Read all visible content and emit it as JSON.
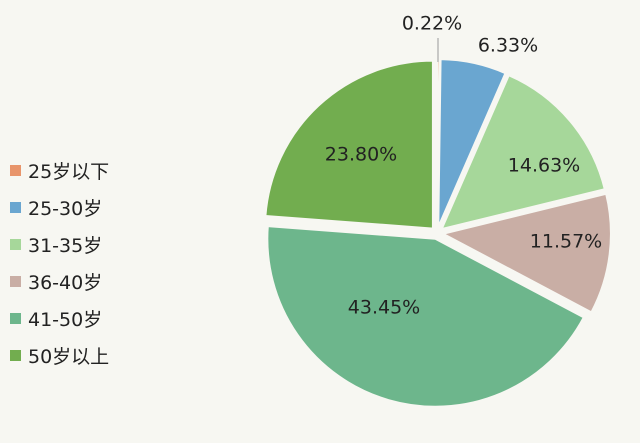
{
  "chart_data": {
    "type": "pie",
    "title": "",
    "categories": [
      "25岁以下",
      "25-30岁",
      "31-35岁",
      "36-40岁",
      "41-50岁",
      "50岁以上"
    ],
    "values": [
      0.22,
      6.33,
      14.63,
      11.57,
      43.45,
      23.8
    ],
    "data_labels": [
      "0.22%",
      "6.33%",
      "14.63%",
      "11.57%",
      "43.45%",
      "23.80%"
    ],
    "colors": [
      "#e8956b",
      "#6aa6d0",
      "#a6d79a",
      "#c9aea5",
      "#6db68c",
      "#72ad4f"
    ],
    "legend_position": "left",
    "exploded": true
  }
}
